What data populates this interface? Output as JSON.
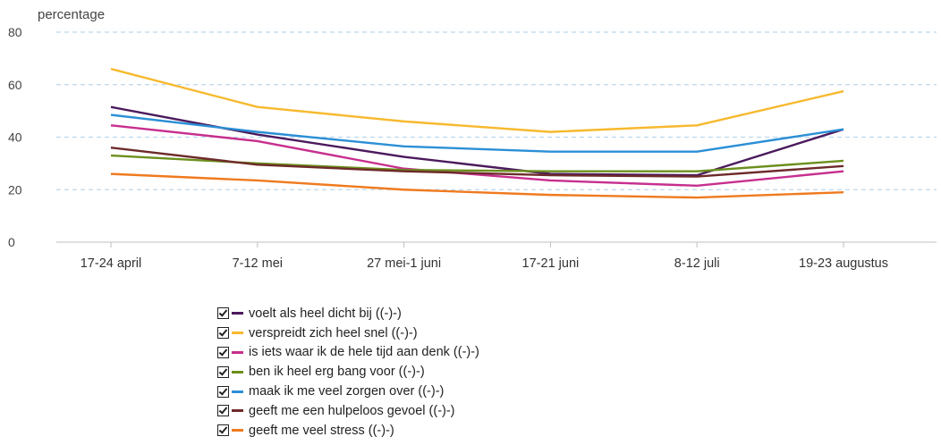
{
  "chart_data": {
    "type": "line",
    "title": "",
    "ylabel": "percentage",
    "xlabel": "",
    "ylim": [
      0,
      80
    ],
    "yticks": [
      0,
      20,
      40,
      60,
      80
    ],
    "grid": true,
    "legend_placement": "bottom",
    "categories": [
      "17-24 april",
      "7-12 mei",
      "27 mei-1 juni",
      "17-21 juni",
      "8-12 juli",
      "19-23 augustus"
    ],
    "series": [
      {
        "name": "voelt als heel dicht bij ((-)-)",
        "color": "#4b1a5c",
        "values": [
          51.5,
          41,
          32.5,
          26,
          25.5,
          43
        ]
      },
      {
        "name": "verspreidt zich heel snel ((-)-)",
        "color": "#f7b92e",
        "values": [
          66,
          51.5,
          46,
          42,
          44.5,
          57.5
        ]
      },
      {
        "name": "is iets waar ik de hele tijd aan denk ((-)-)",
        "color": "#c72f8e",
        "values": [
          44.5,
          38.5,
          28,
          23.5,
          21.5,
          27
        ]
      },
      {
        "name": "ben ik heel erg bang voor ((-)-)",
        "color": "#6b8f1c",
        "values": [
          33,
          30,
          27.5,
          27,
          27,
          31
        ]
      },
      {
        "name": "maak ik me veel zorgen over ((-)-)",
        "color": "#2b8fd6",
        "values": [
          48.5,
          42,
          36.5,
          34.5,
          34.5,
          43
        ]
      },
      {
        "name": "geeft me een hulpeloos gevoel ((-)-)",
        "color": "#6e2a2a",
        "values": [
          36,
          29.5,
          27,
          25.5,
          25,
          29
        ]
      },
      {
        "name": "geeft me veel stress ((-)-)",
        "color": "#ef7a1f",
        "values": [
          26,
          23.5,
          20,
          18,
          17,
          19
        ]
      }
    ]
  }
}
